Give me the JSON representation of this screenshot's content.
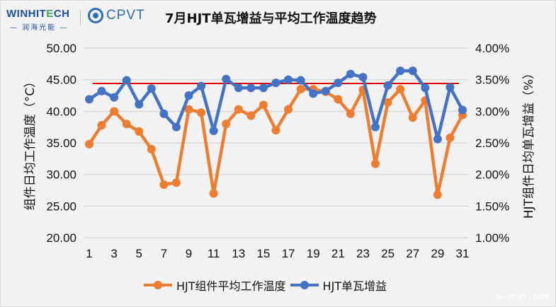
{
  "header": {
    "logo_winhitech": "WINHIT",
    "logo_winhitech_e": "E",
    "logo_winhitech_end": "CH",
    "logo_winhitech_sub": "— 润海光能 —",
    "logo_cpvt": "CPVT",
    "title": "7月HJT单瓦增益与平均工作温度趋势"
  },
  "watermark": "w-bear.com",
  "colors": {
    "temperature": "#ed7d31",
    "gain": "#4472c4",
    "reference_line": "#e00000",
    "grid": "#d9d9d9"
  },
  "chart_data": {
    "type": "line",
    "title": "7月HJT单瓦增益与平均工作温度趋势",
    "x": [
      1,
      2,
      3,
      4,
      5,
      6,
      7,
      8,
      9,
      10,
      11,
      12,
      13,
      14,
      15,
      16,
      17,
      18,
      19,
      20,
      21,
      22,
      23,
      24,
      25,
      26,
      27,
      28,
      29,
      30,
      31
    ],
    "x_tick_labels": [
      "1",
      "3",
      "5",
      "7",
      "9",
      "11",
      "13",
      "15",
      "17",
      "19",
      "21",
      "23",
      "25",
      "27",
      "29",
      "31"
    ],
    "xlabel": "",
    "ylabel_left": "组件日均工作温度（°C）",
    "ylabel_right": "HJT组件日均单瓦增益（%）",
    "ylim_left": [
      20,
      50
    ],
    "ylim_right": [
      1.0,
      4.0
    ],
    "y_ticks_left": [
      "50.00",
      "45.00",
      "40.00",
      "35.00",
      "30.00",
      "25.00",
      "20.00"
    ],
    "y_ticks_right": [
      "4.00%",
      "3.50%",
      "3.00%",
      "2.50%",
      "2.00%",
      "1.50%",
      "1.00%"
    ],
    "grid": true,
    "legend_position": "bottom",
    "series": [
      {
        "name": "HJT组件平均工作温度",
        "axis": "left",
        "unit": "°C",
        "values": [
          34.8,
          37.8,
          40.0,
          38.0,
          36.8,
          34.0,
          28.4,
          28.7,
          40.3,
          39.8,
          27.0,
          38.0,
          40.3,
          39.3,
          41.0,
          37.0,
          40.3,
          43.5,
          43.5,
          43.1,
          41.9,
          39.6,
          43.4,
          31.7,
          41.4,
          43.5,
          39.0,
          41.7,
          26.8,
          35.8,
          39.4
        ]
      },
      {
        "name": "HJT单瓦增益",
        "axis": "right",
        "unit": "%",
        "values": [
          3.19,
          3.32,
          3.22,
          3.49,
          3.11,
          3.36,
          2.96,
          2.75,
          3.25,
          3.4,
          2.69,
          3.51,
          3.37,
          3.37,
          3.37,
          3.45,
          3.5,
          3.49,
          3.28,
          3.32,
          3.45,
          3.59,
          3.54,
          2.75,
          3.41,
          3.64,
          3.64,
          3.37,
          2.56,
          3.38,
          3.02
        ]
      }
    ],
    "annotations": [
      {
        "type": "horizontal_line",
        "color": "#e00000",
        "left_axis_value": 44.4,
        "right_axis_value": 3.44
      }
    ]
  },
  "legend": {
    "items": [
      {
        "label": "HJT组件平均工作温度"
      },
      {
        "label": "HJT单瓦增益"
      }
    ]
  }
}
